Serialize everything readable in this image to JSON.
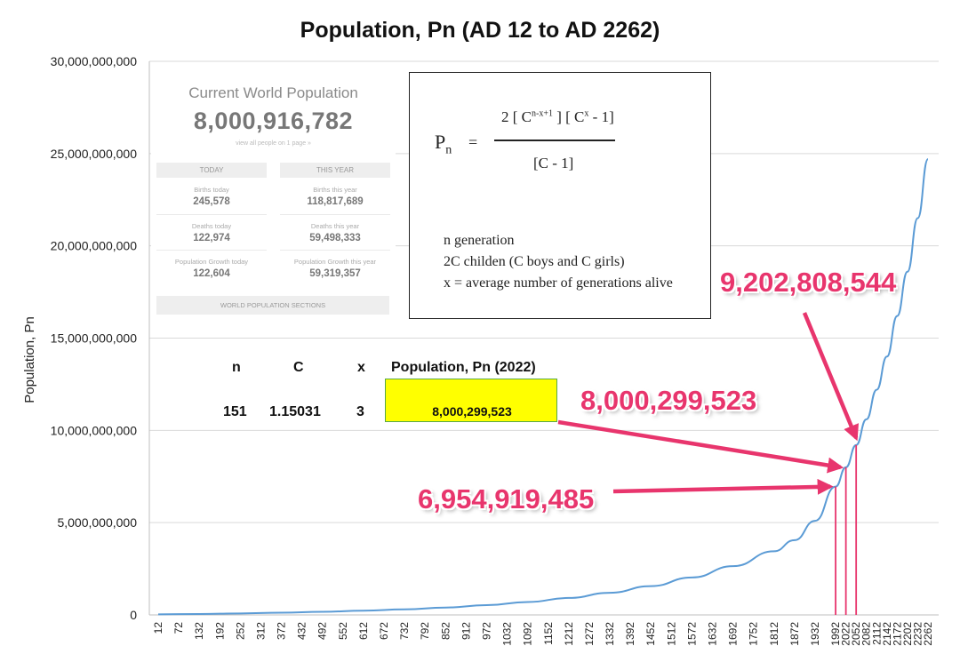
{
  "chart_data": {
    "type": "line",
    "title": "Population, Pn (AD 12 to AD 2262)",
    "ylabel": "Population, Pn",
    "xlabel": "",
    "ylim": [
      0,
      30000000000
    ],
    "yticks": [
      "0",
      "5,000,000,000",
      "10,000,000,000",
      "15,000,000,000",
      "20,000,000,000",
      "25,000,000,000",
      "30,000,000,000"
    ],
    "xticks": [
      12,
      72,
      132,
      192,
      252,
      312,
      372,
      432,
      492,
      552,
      612,
      672,
      732,
      792,
      852,
      912,
      972,
      1032,
      1092,
      1152,
      1212,
      1272,
      1332,
      1392,
      1452,
      1512,
      1572,
      1632,
      1692,
      1752,
      1812,
      1872,
      1932,
      1992,
      2022,
      2052,
      2082,
      2112,
      2142,
      2172,
      2202,
      2232,
      2262
    ],
    "grid": true,
    "series": [
      {
        "name": "",
        "color": "#5b9bd5",
        "x": [
          12,
          132,
          252,
          372,
          492,
          612,
          732,
          852,
          972,
          1092,
          1212,
          1332,
          1452,
          1572,
          1692,
          1812,
          1872,
          1932,
          1992,
          2022,
          2052,
          2082,
          2112,
          2142,
          2172,
          2202,
          2232,
          2262
        ],
        "y": [
          30000000,
          50000000,
          80000000,
          120000000,
          170000000,
          230000000,
          300000000,
          400000000,
          530000000,
          700000000,
          920000000,
          1200000000,
          1560000000,
          2030000000,
          2640000000,
          3450000000,
          4050000000,
          5100000000,
          6954919485,
          8000299523,
          9202808544,
          10600000000,
          12200000000,
          14000000000,
          16200000000,
          18600000000,
          21500000000,
          24700000000
        ]
      }
    ],
    "markers": [
      {
        "x": 1992,
        "y": 6954919485,
        "label": "6,954,919,485"
      },
      {
        "x": 2022,
        "y": 8000299523,
        "label": "8,000,299,523"
      },
      {
        "x": 2052,
        "y": 9202808544,
        "label": "9,202,808,544"
      }
    ],
    "annotation_color": "#e8356d"
  },
  "counter": {
    "title": "Current World Population",
    "value": "8,000,916,782",
    "link": "view all people on 1 page »",
    "today_header": "TODAY",
    "year_header": "THIS YEAR",
    "births_today_label": "Births today",
    "births_today": "245,578",
    "births_year_label": "Births this year",
    "births_year": "118,817,689",
    "deaths_today_label": "Deaths today",
    "deaths_today": "122,974",
    "deaths_year_label": "Deaths this year",
    "deaths_year": "59,498,333",
    "growth_today_label": "Population Growth today",
    "growth_today": "122,604",
    "growth_year_label": "Population Growth this year",
    "growth_year": "59,319,357",
    "sections": "WORLD POPULATION SECTIONS"
  },
  "formula": {
    "lhs": "P",
    "lhs_sub": "n",
    "equals": "=",
    "num_a": "2 [ C",
    "num_a_sup": "n-x+1",
    "num_b": "] [ C",
    "num_b_sup": "x",
    "num_c": "- 1]",
    "den": "[C - 1]",
    "line1": "n  generation",
    "line2": "2C childen (C boys and C girls)",
    "line3": "x = average number of generations alive"
  },
  "table": {
    "h_n": "n",
    "h_c": "C",
    "h_x": "x",
    "h_pn": "Population, Pn (2022)",
    "v_n": "151",
    "v_c": "1.15031",
    "v_x": "3",
    "v_pn": "8,000,299,523"
  }
}
